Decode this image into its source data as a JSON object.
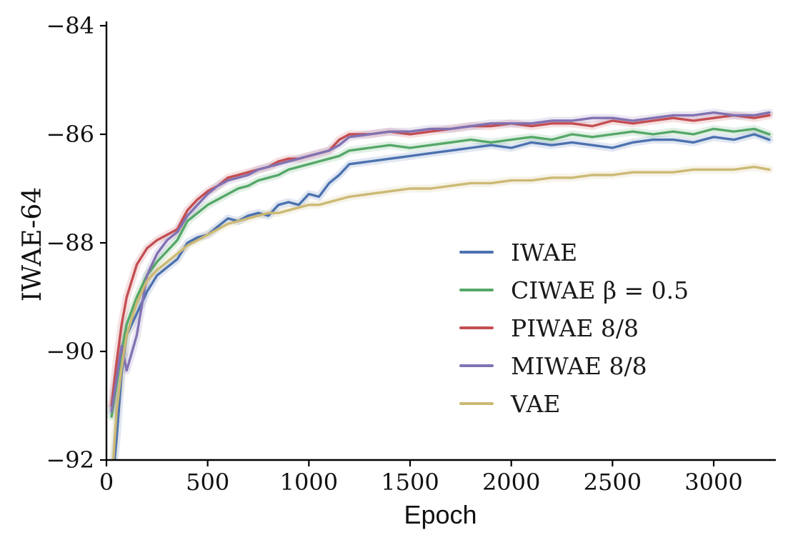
{
  "figure": {
    "background": "#ffffff"
  },
  "chart_data": {
    "type": "line",
    "title": "",
    "xlabel": "Epoch",
    "ylabel": "IWAE-64",
    "xlim": [
      0,
      3300
    ],
    "ylim": [
      -92,
      -84
    ],
    "grid": false,
    "legend_position": "center-right-inside",
    "band_opacity": 0.17,
    "x_ticks": [
      {
        "v": 0,
        "label": "0"
      },
      {
        "v": 500,
        "label": "500"
      },
      {
        "v": 1000,
        "label": "1000"
      },
      {
        "v": 1500,
        "label": "1500"
      },
      {
        "v": 2000,
        "label": "2000"
      },
      {
        "v": 2500,
        "label": "2500"
      },
      {
        "v": 3000,
        "label": "3000"
      }
    ],
    "y_ticks": [
      {
        "v": -84,
        "label": "−84"
      },
      {
        "v": -86,
        "label": "−86"
      },
      {
        "v": -88,
        "label": "−88"
      },
      {
        "v": -90,
        "label": "−90"
      },
      {
        "v": -92,
        "label": "−92"
      }
    ],
    "x": [
      25,
      50,
      75,
      100,
      150,
      200,
      250,
      300,
      350,
      400,
      450,
      500,
      550,
      600,
      650,
      700,
      750,
      800,
      850,
      900,
      950,
      1000,
      1050,
      1100,
      1150,
      1200,
      1300,
      1400,
      1500,
      1600,
      1700,
      1800,
      1900,
      2000,
      2100,
      2200,
      2300,
      2400,
      2500,
      2600,
      2700,
      2800,
      2900,
      3000,
      3100,
      3200,
      3275
    ],
    "series": [
      {
        "name": "IWAE",
        "color": "#4c72b0",
        "values": [
          -92.6,
          -91.6,
          -90.4,
          -89.7,
          -89.3,
          -88.9,
          -88.6,
          -88.45,
          -88.3,
          -88.0,
          -87.9,
          -87.85,
          -87.7,
          -87.55,
          -87.6,
          -87.5,
          -87.45,
          -87.5,
          -87.3,
          -87.25,
          -87.3,
          -87.1,
          -87.15,
          -86.9,
          -86.75,
          -86.55,
          -86.5,
          -86.45,
          -86.4,
          -86.35,
          -86.3,
          -86.25,
          -86.2,
          -86.25,
          -86.15,
          -86.2,
          -86.15,
          -86.2,
          -86.25,
          -86.15,
          -86.1,
          -86.1,
          -86.15,
          -86.05,
          -86.1,
          -86.0,
          -86.1
        ]
      },
      {
        "name": "CIWAE β = 0.5",
        "color": "#55a868",
        "values": [
          -91.2,
          -90.6,
          -90.0,
          -89.5,
          -89.0,
          -88.6,
          -88.35,
          -88.15,
          -87.95,
          -87.6,
          -87.45,
          -87.3,
          -87.2,
          -87.1,
          -87.0,
          -86.95,
          -86.85,
          -86.8,
          -86.75,
          -86.65,
          -86.6,
          -86.55,
          -86.5,
          -86.45,
          -86.4,
          -86.3,
          -86.25,
          -86.2,
          -86.25,
          -86.2,
          -86.15,
          -86.1,
          -86.15,
          -86.1,
          -86.05,
          -86.1,
          -86.0,
          -86.05,
          -86.0,
          -85.95,
          -86.0,
          -85.95,
          -86.0,
          -85.9,
          -85.95,
          -85.9,
          -86.0
        ]
      },
      {
        "name": "PIWAE 8/8",
        "color": "#c44e52",
        "values": [
          -91.0,
          -90.2,
          -89.5,
          -89.0,
          -88.4,
          -88.1,
          -87.95,
          -87.85,
          -87.75,
          -87.4,
          -87.2,
          -87.05,
          -86.95,
          -86.8,
          -86.75,
          -86.7,
          -86.65,
          -86.6,
          -86.5,
          -86.45,
          -86.45,
          -86.4,
          -86.35,
          -86.3,
          -86.1,
          -86.0,
          -86.0,
          -85.95,
          -86.0,
          -85.95,
          -85.9,
          -85.85,
          -85.85,
          -85.8,
          -85.85,
          -85.8,
          -85.8,
          -85.85,
          -85.75,
          -85.8,
          -85.75,
          -85.7,
          -85.75,
          -85.7,
          -85.65,
          -85.7,
          -85.65
        ]
      },
      {
        "name": "MIWAE 8/8",
        "color": "#8172b2",
        "values": [
          -91.1,
          -90.5,
          -89.9,
          -90.35,
          -89.7,
          -88.6,
          -88.2,
          -87.95,
          -87.8,
          -87.5,
          -87.3,
          -87.1,
          -86.95,
          -86.85,
          -86.8,
          -86.75,
          -86.65,
          -86.6,
          -86.55,
          -86.5,
          -86.45,
          -86.4,
          -86.35,
          -86.3,
          -86.2,
          -86.05,
          -86.0,
          -85.95,
          -85.95,
          -85.9,
          -85.9,
          -85.85,
          -85.8,
          -85.8,
          -85.8,
          -85.75,
          -85.75,
          -85.7,
          -85.7,
          -85.75,
          -85.7,
          -85.65,
          -85.65,
          -85.6,
          -85.65,
          -85.65,
          -85.6
        ]
      },
      {
        "name": "VAE",
        "color": "#ccb974",
        "values": [
          -92.5,
          -91.1,
          -90.3,
          -89.7,
          -89.1,
          -88.7,
          -88.5,
          -88.35,
          -88.2,
          -88.05,
          -87.95,
          -87.85,
          -87.75,
          -87.65,
          -87.6,
          -87.55,
          -87.5,
          -87.45,
          -87.45,
          -87.4,
          -87.35,
          -87.3,
          -87.3,
          -87.25,
          -87.2,
          -87.15,
          -87.1,
          -87.05,
          -87.0,
          -87.0,
          -86.95,
          -86.9,
          -86.9,
          -86.85,
          -86.85,
          -86.8,
          -86.8,
          -86.75,
          -86.75,
          -86.7,
          -86.7,
          -86.7,
          -86.65,
          -86.65,
          -86.65,
          -86.6,
          -86.65
        ]
      }
    ]
  }
}
